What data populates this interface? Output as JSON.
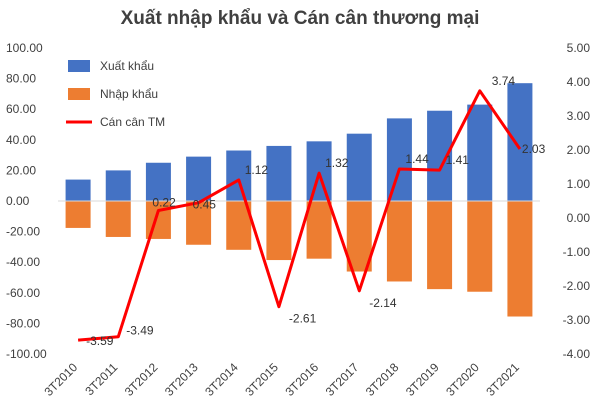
{
  "chart_data": {
    "type": "bar",
    "title": "Xuất nhập khẩu và Cán cân thương mại",
    "categories": [
      "3T2010",
      "3T2011",
      "3T2012",
      "3T2013",
      "3T2014",
      "3T2015",
      "3T2016",
      "3T2017",
      "3T2018",
      "3T2019",
      "3T2020",
      "3T2021"
    ],
    "series": [
      {
        "name": "Xuất khẩu",
        "type": "bar",
        "axis": "left",
        "color": "#4472C4",
        "values": [
          14,
          20,
          25,
          29,
          33,
          36,
          39,
          44,
          54,
          59,
          63,
          77
        ]
      },
      {
        "name": "Nhập khẩu",
        "type": "bar",
        "axis": "left",
        "color": "#ED7D31",
        "values": [
          -17.6,
          -23.5,
          -24.8,
          -28.6,
          -31.9,
          -38.6,
          -37.7,
          -46.1,
          -52.6,
          -57.6,
          -59.3,
          -75.5
        ]
      },
      {
        "name": "Cán cân TM",
        "type": "line",
        "axis": "right",
        "color": "#FF0000",
        "values": [
          -3.59,
          -3.49,
          0.22,
          0.45,
          1.12,
          -2.61,
          1.32,
          -2.14,
          1.44,
          1.41,
          3.74,
          2.03
        ],
        "labels": [
          "-3.59",
          "-3.49",
          "0.22",
          "0.45",
          "1.12",
          "-2.61",
          "1.32",
          "-2.14",
          "1.44",
          "1.41",
          "3.74",
          "2.03"
        ]
      }
    ],
    "y_left": {
      "lim": [
        -100,
        100
      ],
      "ticks": [
        -100,
        -80,
        -60,
        -40,
        -20,
        0,
        20,
        40,
        60,
        80,
        100
      ],
      "tick_labels": [
        "-100.00",
        "-80.00",
        "-60.00",
        "-40.00",
        "-20.00",
        "0.00",
        "20.00",
        "40.00",
        "60.00",
        "80.00",
        "100.00"
      ]
    },
    "y_right": {
      "lim": [
        -4,
        5
      ],
      "ticks": [
        -4,
        -3,
        -2,
        -1,
        0,
        1,
        2,
        3,
        4,
        5
      ],
      "tick_labels": [
        "-4.00",
        "-3.00",
        "-2.00",
        "-1.00",
        "0.00",
        "1.00",
        "2.00",
        "3.00",
        "4.00",
        "5.00"
      ]
    },
    "legend_position": "top-left",
    "grid": false
  }
}
